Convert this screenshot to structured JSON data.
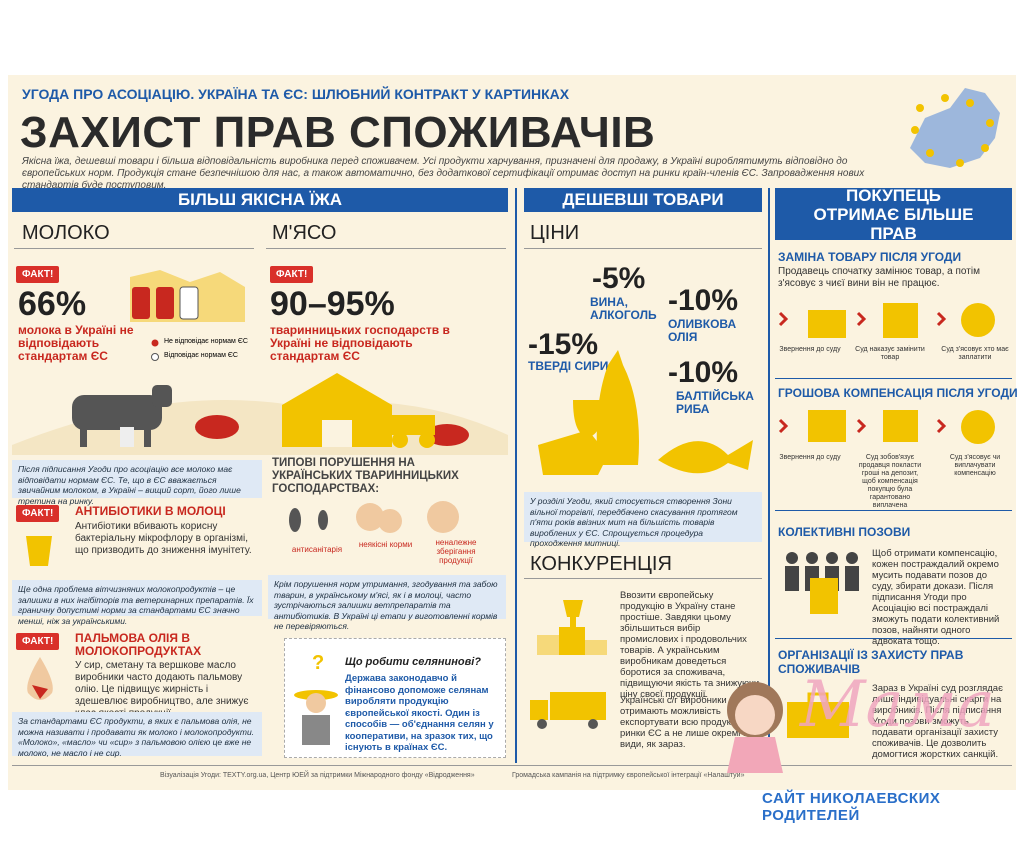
{
  "header": {
    "kicker": "УГОДА ПРО АСОЦІАЦІЮ. УКРАЇНА ТА ЄС: ШЛЮБНИЙ КОНТРАКТ У КАРТИНКАХ",
    "title": "ЗАХИСТ ПРАВ СПОЖИВАЧІВ",
    "intro": "Якісна їжа, дешевші товари і більша відповідальність виробника перед споживачем. Усі продукти харчування, призначені для продажу, в Україні вироблятимуть відповідно до європейських норм. Продукція стане безпечнішою для нас, а також автоматично, без додаткової сертифікації отримає доступ на ринки країн-членів ЄС. Запровадження нових стандартів буде поступовим."
  },
  "food": {
    "heading": "БІЛЬШ ЯКІСНА ЇЖА",
    "milk": {
      "label": "МОЛОКО",
      "badge": "ФАКТ!",
      "stat": "66%",
      "stat_text": "молока в Україні не відповідають стандартам ЄС",
      "legend": [
        "Не відповідає нормам ЄС",
        "Відповідає нормам ЄС"
      ]
    },
    "meat": {
      "label": "М'ЯСО",
      "badge": "ФАКТ!",
      "stat": "90–95%",
      "stat_text": "тваринницьких господарств в Україні не відповідають стандартам ЄС"
    },
    "milk_note": "Після підписання Угоди про асоціацію все молоко має відповідати нормам ЄС. Те, що в ЄС вважається звичайним молоком, в Україні – вищий сорт, його лише третина на ринку.",
    "antibiotics": {
      "badge": "ФАКТ!",
      "title": "АНТИБІОТИКИ В МОЛОЦІ",
      "text": "Антибіотики вбивають корисну бактеріальну мікрофлору в організмі, що призводить до зниження імунітету.",
      "note": "Ще одна проблема вітчизняних молокопродуктів – це залишки в них інгібіторів та ветеринарних препаратів. Їх граничну допустимі норми за стандартами ЄС значно менші, ніж за українськими."
    },
    "palm": {
      "badge": "ФАКТ!",
      "title": "ПАЛЬМОВА ОЛІЯ В МОЛОКОПРОДУКТАХ",
      "text": "У сир, сметану та вершкове масло виробники часто додають пальмову олію. Це підвищує жирність і здешевлює виробництво, але знижує клас якості продукції.",
      "note": "За стандартами ЄС продукти, в яких є пальмова олія, не можна називати і продавати як молоко і молокопродукти. «Молоко», «масло» чи «сир» з пальмовою олією це вже не молоко, не масло і не сир."
    },
    "violations": {
      "title": "ТИПОВІ ПОРУШЕННЯ НА УКРАЇНСЬКИХ ТВАРИННИЦЬКИХ ГОСПОДАРСТВАХ:",
      "items": [
        "антисанітарія",
        "неякісні корми",
        "неналежне зберігання продукції"
      ],
      "note": "Крім порушення норм утримання, згодування та забою тварин, в українському м'ясі, як і в молоці, часто зустрічаються залишки ветпрепаратів та антибіотиків. В Україні ці етапи у виготовленні кормів не перевіряються."
    },
    "farmer": {
      "question": "Що робити селянинові?",
      "text": "Держава законодавчо й фінансово допоможе селянам виробляти продукцію європейської якості. Один із способів — об'єднання селян у кооперативи, на зразок тих, що існують в країнах ЄС."
    }
  },
  "prices": {
    "heading": "ДЕШЕВШІ ТОВАРИ",
    "label": "ЦІНИ",
    "items": [
      {
        "value": "-5%",
        "label": "ВИНА, АЛКОГОЛЬ"
      },
      {
        "value": "-10%",
        "label": "ОЛИВКОВА ОЛІЯ"
      },
      {
        "value": "-15%",
        "label": "ТВЕРДІ СИРИ"
      },
      {
        "value": "-10%",
        "label": "БАЛТІЙСЬКА РИБА"
      }
    ],
    "note": "У розділі Угоди, який стосується створення Зони вільної торгівлі, передбачено скасування протягом п'яти років ввізних мит на більшість товарів вироблених у ЄС. Спрощується процедура проходження митниці."
  },
  "competition": {
    "label": "КОНКУРЕНЦІЯ",
    "text": "Ввозити європейську продукцію в Україну стане простіше. Завдяки цьому збільшиться вибір промислових і продовольчих товарів. А українським виробникам доведеться боротися за споживача, підвищуючи якість та знижуючи ціну своєї продукції.",
    "text2": "Українські с/г виробники отримають можливість експортувати всю продукцію на ринки ЄС а не лише окремі її види, як зараз."
  },
  "rights": {
    "heading": "ПОКУПЕЦЬ ОТРИМАЄ БІЛЬШЕ ПРАВ",
    "replacement": {
      "title": "ЗАМІНА ТОВАРУ ПІСЛЯ УГОДИ",
      "text": "Продавець спочатку замінює товар, а потім з'ясовує з чиєї вини він не працює.",
      "steps": [
        "Звернення до суду",
        "Суд наказує замінити товар",
        "Суд з'ясовує хто має заплатити"
      ]
    },
    "compensation": {
      "title": "ГРОШОВА КОМПЕНСАЦІЯ ПІСЛЯ УГОДИ",
      "steps": [
        "Звернення до суду",
        "Суд зобов'язує продавця покласти гроші на депозит, щоб компенсація покупцю була гарантовано виплачена",
        "Суд з'ясовує чи виплачувати компенсацію"
      ]
    },
    "collective": {
      "title": "КОЛЕКТИВНІ ПОЗОВИ",
      "text": "Щоб отримати компенсацію, кожен постраждалий окремо мусить подавати позов до суду, збирати докази. Після підписання Угоди про Асоціацію всі постраждалі зможуть подати колективний позов, найняти одного адвоката тощо."
    },
    "organizations": {
      "title": "ОРГАНІЗАЦІЇ ІЗ ЗАХИСТУ ПРАВ СПОЖИВАЧІВ",
      "text": "Зараз в Україні суд розглядає лише індивідуальні скарги на виробників. Після підписання Угоди позови зможуть подавати організації захисту споживачів. Це дозволить домогтися жорстких санкцій."
    }
  },
  "footer": {
    "credits": "Візуалізація Угоди: TEXTY.org.ua, Центр ЮЕЙ за підтримки Міжнародного фонду «Відродження»",
    "campaign": "Громадська кампанія на підтримку європейської інтеграції «Налаштуй»"
  },
  "watermark": {
    "logo": "Мама",
    "site": "САЙТ НИКОЛАЕВСКИХ РОДИТЕЛЕЙ"
  }
}
